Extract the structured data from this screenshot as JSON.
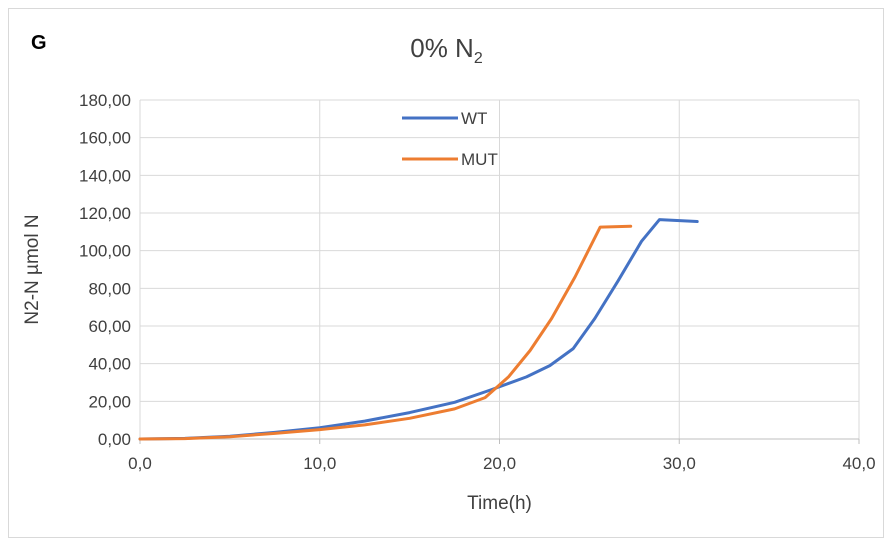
{
  "panel_label": "G",
  "chart_data": {
    "type": "line",
    "title_main": "0% N",
    "title_sub": "2",
    "xlabel": "Time(h)",
    "ylabel": "N2-N µmol N",
    "xlim": [
      0,
      40
    ],
    "ylim": [
      0,
      180
    ],
    "x_ticks": [
      0,
      10,
      20,
      30,
      40
    ],
    "x_tick_labels": [
      "0,0",
      "10,0",
      "20,0",
      "30,0",
      "40,0"
    ],
    "y_ticks": [
      0,
      20,
      40,
      60,
      80,
      100,
      120,
      140,
      160,
      180
    ],
    "y_tick_labels": [
      "0,00",
      "20,00",
      "40,00",
      "60,00",
      "80,00",
      "100,00",
      "120,00",
      "140,00",
      "160,00",
      "180,00"
    ],
    "grid": true,
    "legend_position": "top-center",
    "series": [
      {
        "name": "WT",
        "color": "#4472c4",
        "x": [
          0,
          2.5,
          5,
          7.5,
          10,
          12.5,
          15,
          17.5,
          19.5,
          21.5,
          22.8,
          24.1,
          25.3,
          26.6,
          27.9,
          28.9,
          31.0
        ],
        "y": [
          0,
          0.3,
          1.5,
          3.5,
          6,
          9.5,
          14,
          19.5,
          26,
          33,
          39,
          48,
          64,
          84,
          105,
          116.5,
          115.5
        ]
      },
      {
        "name": "MUT",
        "color": "#ed7d31",
        "x": [
          0,
          2.5,
          5,
          7.5,
          10,
          12.5,
          15,
          17.5,
          19.2,
          20.5,
          21.7,
          22.9,
          24.2,
          25.6,
          27.3
        ],
        "y": [
          0,
          0.2,
          1.2,
          3,
          5,
          7.5,
          11,
          16,
          22,
          33,
          47,
          64,
          86,
          112.5,
          113
        ]
      }
    ]
  }
}
